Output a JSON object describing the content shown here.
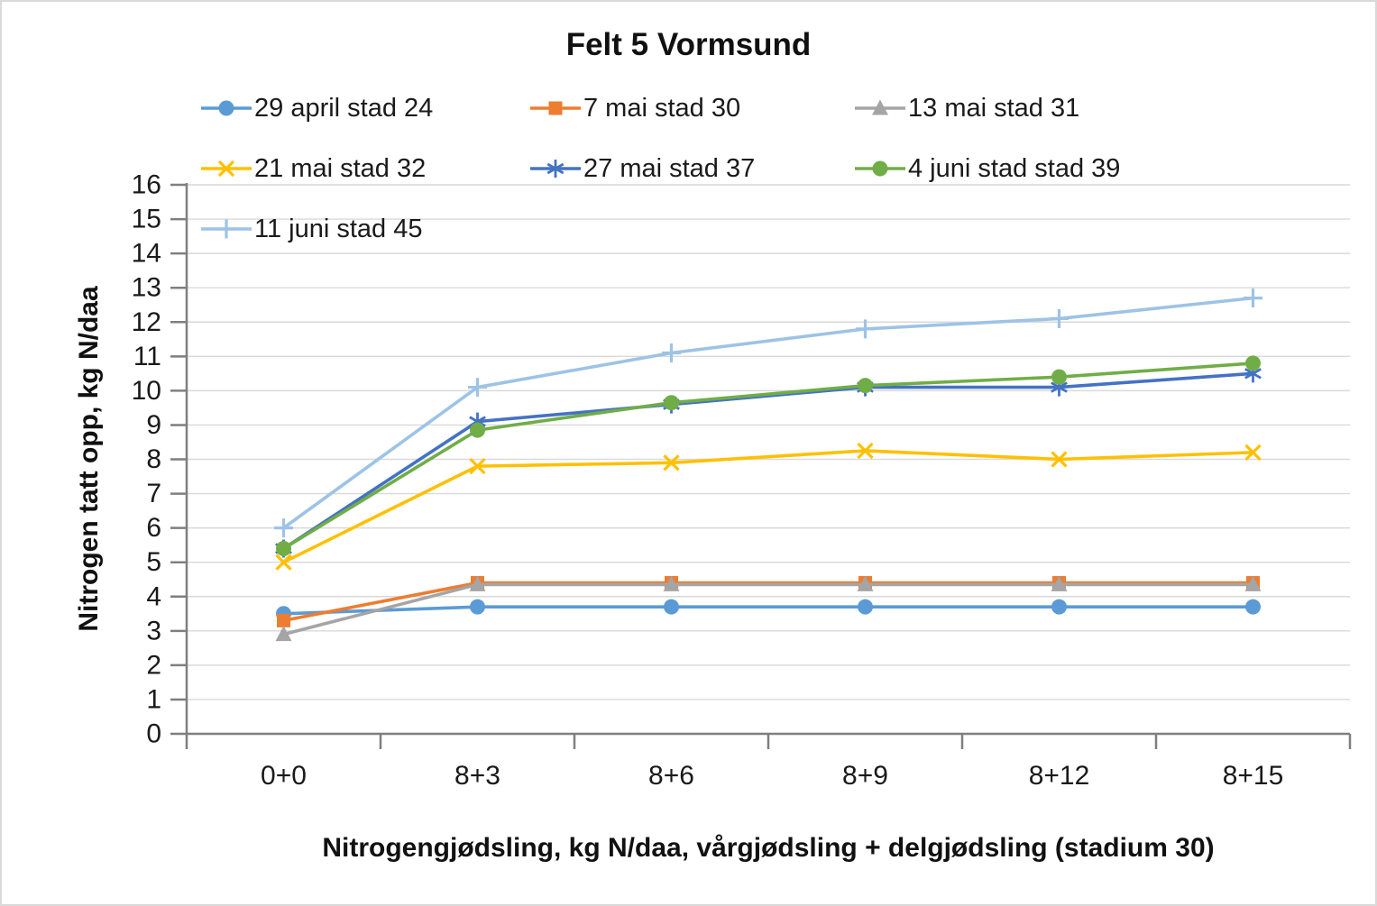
{
  "title": "Felt 5 Vormsund",
  "y_axis_title": "Nitrogen tatt opp, kg N/daa",
  "x_axis_title": "Nitrogengjødsling, kg N/daa, vårgjødsling + delgjødsling (stadium 30)",
  "chart_data": {
    "type": "line",
    "categories": [
      "0+0",
      "8+3",
      "8+6",
      "8+9",
      "8+12",
      "8+15"
    ],
    "series": [
      {
        "name": "29 april stad 24",
        "color": "#5B9BD5",
        "marker": "circle",
        "values": [
          3.5,
          3.7,
          3.7,
          3.7,
          3.7,
          3.7
        ]
      },
      {
        "name": "7 mai stad 30",
        "color": "#ED7D31",
        "marker": "square",
        "values": [
          3.3,
          4.4,
          4.4,
          4.4,
          4.4,
          4.4
        ]
      },
      {
        "name": "13 mai stad 31",
        "color": "#A5A5A5",
        "marker": "triangle",
        "values": [
          2.9,
          4.35,
          4.35,
          4.35,
          4.35,
          4.35
        ]
      },
      {
        "name": "21 mai stad 32",
        "color": "#FFC000",
        "marker": "x",
        "values": [
          5.0,
          7.8,
          7.9,
          8.25,
          8.0,
          8.2
        ]
      },
      {
        "name": "27 mai stad 37",
        "color": "#4472C4",
        "marker": "asterisk",
        "values": [
          5.4,
          9.1,
          9.6,
          10.1,
          10.1,
          10.5
        ]
      },
      {
        "name": "4 juni stad stad 39",
        "color": "#70AD47",
        "marker": "circle",
        "values": [
          5.4,
          8.85,
          9.65,
          10.15,
          10.4,
          10.8
        ]
      },
      {
        "name": "11 juni stad 45",
        "color": "#9DC3E6",
        "marker": "plus",
        "values": [
          6.0,
          10.1,
          11.1,
          11.8,
          12.1,
          12.7
        ]
      }
    ],
    "y_ticks": [
      0,
      1,
      2,
      3,
      4,
      5,
      6,
      7,
      8,
      9,
      10,
      11,
      12,
      13,
      14,
      15,
      16
    ],
    "ylim": [
      0,
      16
    ],
    "grid": true,
    "legend_position": "top",
    "grid_color": "#D9D9D9",
    "axis_color": "#7F7F7F",
    "tick_label_color": "#1a1a1a"
  }
}
